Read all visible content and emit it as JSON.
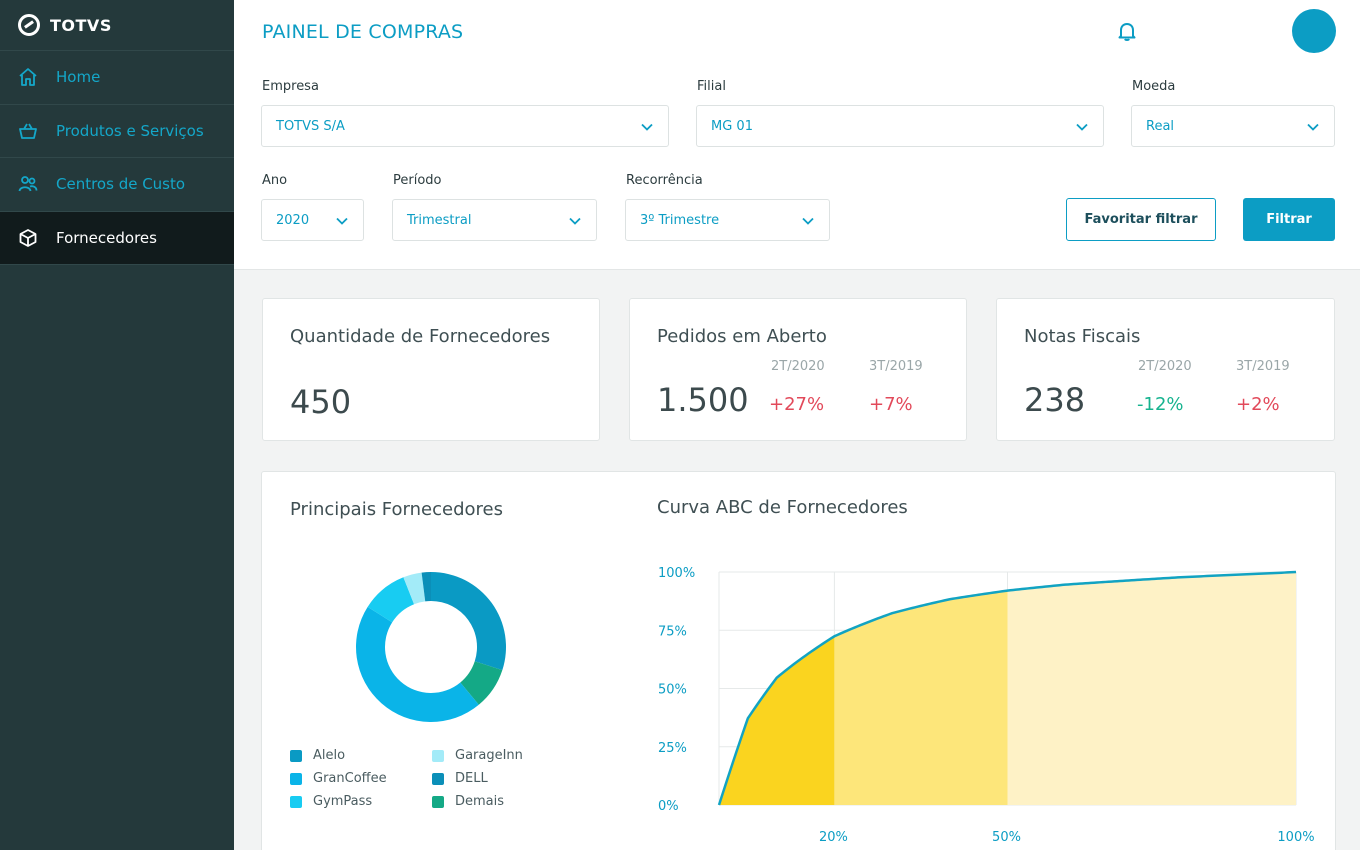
{
  "brand": {
    "name": "TOTVS"
  },
  "sidebar": {
    "items": [
      {
        "label": "Home",
        "icon": "home-icon",
        "active": false
      },
      {
        "label": "Produtos e Serviços",
        "icon": "basket-icon",
        "active": false
      },
      {
        "label": "Centros de Custo",
        "icon": "users-icon",
        "active": false
      },
      {
        "label": "Fornecedores",
        "icon": "box-icon",
        "active": true
      }
    ]
  },
  "header": {
    "title": "PAINEL DE COMPRAS"
  },
  "filters": {
    "empresa": {
      "label": "Empresa",
      "value": "TOTVS S/A"
    },
    "filial": {
      "label": "Filial",
      "value": "MG 01"
    },
    "moeda": {
      "label": "Moeda",
      "value": "Real"
    },
    "ano": {
      "label": "Ano",
      "value": "2020"
    },
    "periodo": {
      "label": "Período",
      "value": "Trimestral"
    },
    "recorrencia": {
      "label": "Recorrência",
      "value": "3º Trimestre"
    },
    "favorite_label": "Favoritar filtrar",
    "filter_label": "Filtrar"
  },
  "kpis": {
    "fornecedores": {
      "title": "Quantidade de Fornecedores",
      "value": "450"
    },
    "pedidos": {
      "title": "Pedidos em Aberto",
      "value": "1.500",
      "periods": [
        {
          "label": "2T/2020",
          "delta": "+27%"
        },
        {
          "label": "3T/2019",
          "delta": "+7%"
        }
      ]
    },
    "notas": {
      "title": "Notas Fiscais",
      "value": "238",
      "periods": [
        {
          "label": "2T/2020",
          "delta": "-12%"
        },
        {
          "label": "3T/2019",
          "delta": "+2%"
        }
      ]
    }
  },
  "colors": {
    "accent": "#0c9dc4",
    "sidebar_bg": "#24393b",
    "negative": "#e2495a",
    "positive": "#16b38f",
    "abc_a": "#fad41f",
    "abc_b": "#fde67a",
    "abc_c": "#fef2c6",
    "curve": "#12a3c2"
  },
  "panel": {
    "donut_title": "Principais Fornecedores",
    "abc_title": "Curva ABC de Fornecedores"
  },
  "chart_data": [
    {
      "type": "pie",
      "title": "Principais Fornecedores",
      "donut": true,
      "series": [
        {
          "name": "Alelo",
          "value": 30,
          "color": "#0a9ac4"
        },
        {
          "name": "Demais",
          "value": 9,
          "color": "#14a986"
        },
        {
          "name": "GranCoffee",
          "value": 45,
          "color": "#0ab4e8"
        },
        {
          "name": "GymPass",
          "value": 10,
          "color": "#18ccf2"
        },
        {
          "name": "GarageInn",
          "value": 4,
          "color": "#a3ebf8"
        },
        {
          "name": "DELL",
          "value": 2,
          "color": "#0b8fb8"
        }
      ],
      "legend": [
        "Alelo",
        "GarageInn",
        "GranCoffee",
        "DELL",
        "GymPass",
        "Demais"
      ]
    },
    {
      "type": "area",
      "title": "Curva ABC de Fornecedores",
      "x": [
        0,
        5,
        10,
        20,
        30,
        40,
        50,
        60,
        70,
        80,
        90,
        100
      ],
      "y": [
        0,
        40,
        56,
        71,
        80,
        86,
        90,
        93,
        95,
        97,
        98.5,
        100
      ],
      "x_ticks": [
        "20%",
        "50%",
        "100%"
      ],
      "y_ticks": [
        "0%",
        "25%",
        "50%",
        "75%",
        "100%"
      ],
      "xlim": [
        0,
        100
      ],
      "ylim": [
        0,
        100
      ],
      "bands": [
        {
          "from": 0,
          "to": 20,
          "class": "A"
        },
        {
          "from": 20,
          "to": 50,
          "class": "B"
        },
        {
          "from": 50,
          "to": 100,
          "class": "C"
        }
      ],
      "grid": true
    }
  ]
}
